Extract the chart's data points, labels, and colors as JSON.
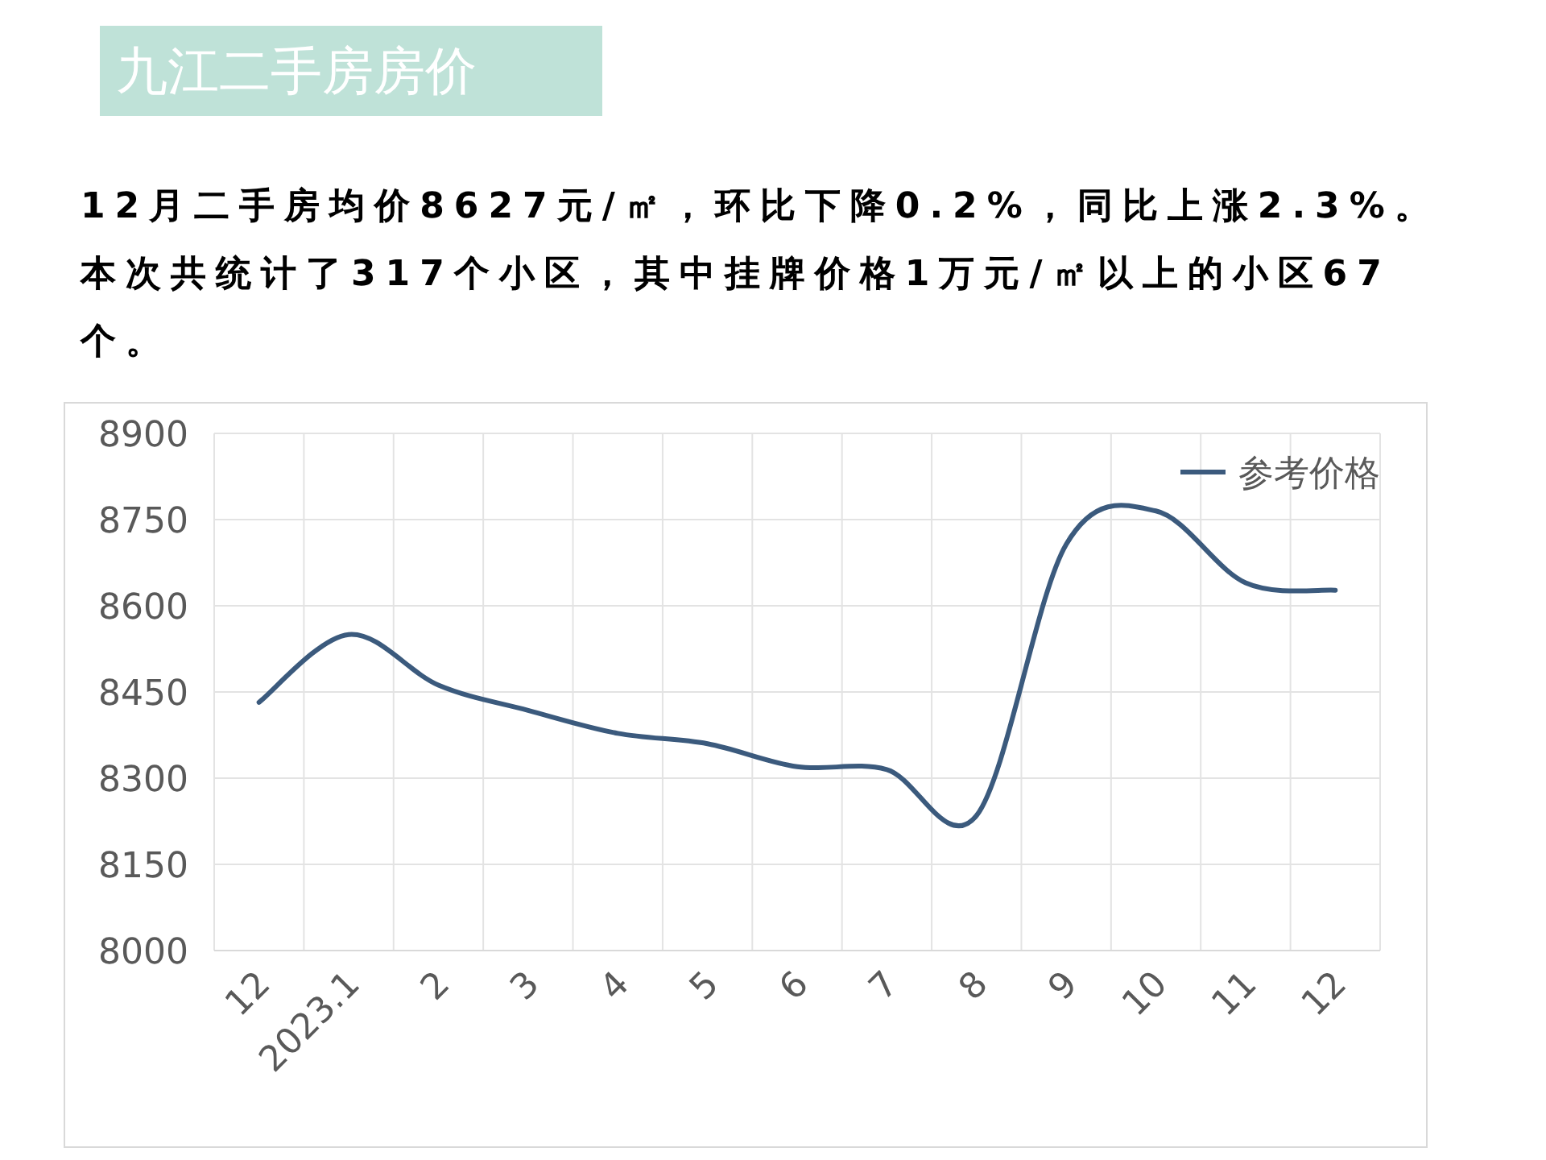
{
  "chart_data": {
    "type": "line",
    "title": "九江二手房房价",
    "subtitle": "12月二手房均价8627元/㎡，环比下降0.2%，同比上涨2.3%。本次共统计了317个小区，其中挂牌价格1万元/㎡以上的小区67个。",
    "categories": [
      "12",
      "2023.1",
      "2",
      "3",
      "4",
      "5",
      "6",
      "7",
      "8",
      "9",
      "10",
      "11",
      "12"
    ],
    "series": [
      {
        "name": "参考价格",
        "color": "#3b5a7d",
        "values": [
          8432,
          8550,
          8462,
          8418,
          8378,
          8360,
          8320,
          8315,
          8235,
          8707,
          8765,
          8640,
          8627
        ]
      }
    ],
    "ylim": [
      8000,
      8900
    ],
    "yticks": [
      8000,
      8150,
      8300,
      8450,
      8600,
      8750,
      8900
    ],
    "grid": true,
    "legend": "top right"
  }
}
